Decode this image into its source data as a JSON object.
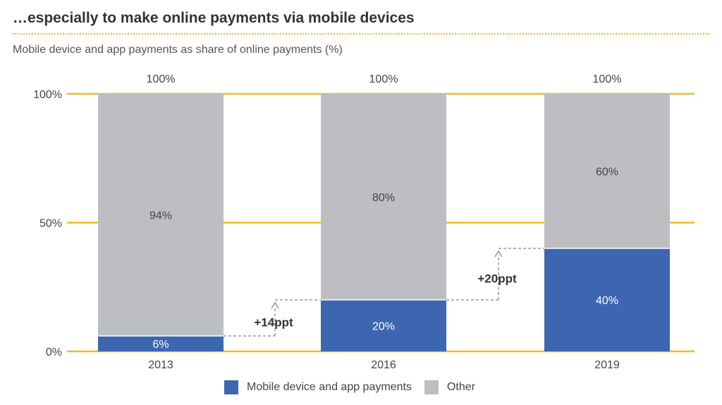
{
  "title": "…especially to make online payments via mobile devices",
  "subtitle": "Mobile device and app payments as share of online payments (%)",
  "colors": {
    "mobile": "#3d66b0",
    "other": "#bdbec2",
    "grid": "#f2be1a",
    "annotation": "#999999"
  },
  "chart_data": {
    "type": "bar",
    "stacked": true,
    "title": "…especially to make online payments via mobile devices",
    "subtitle": "Mobile device and app payments as share of online payments (%)",
    "categories": [
      "2013",
      "2016",
      "2019"
    ],
    "series": [
      {
        "name": "Mobile device and app payments",
        "values": [
          6,
          20,
          40
        ],
        "labels": [
          "6%",
          "20%",
          "40%"
        ]
      },
      {
        "name": "Other",
        "values": [
          94,
          80,
          60
        ],
        "labels": [
          "94%",
          "80%",
          "60%"
        ]
      }
    ],
    "totals": [
      "100%",
      "100%",
      "100%"
    ],
    "ylim": [
      0,
      100
    ],
    "y_ticks": [
      0,
      50,
      100
    ],
    "y_tick_labels": [
      "0%",
      "50%",
      "100%"
    ],
    "grid": true,
    "legend": "bottom",
    "annotations": [
      {
        "text": "+14ppt",
        "from_category": "2013",
        "to_category": "2016"
      },
      {
        "text": "+20ppt",
        "from_category": "2016",
        "to_category": "2019"
      }
    ]
  }
}
